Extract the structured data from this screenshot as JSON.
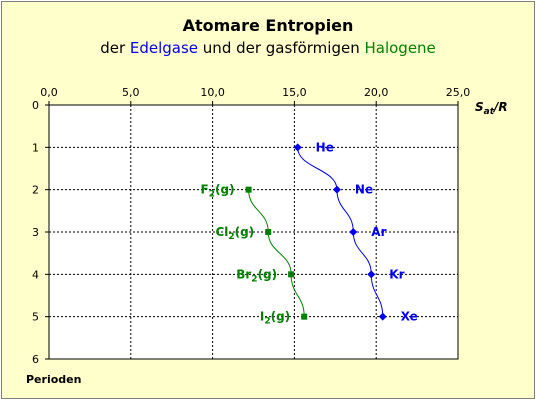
{
  "header": {
    "title": "Atomare Entropien",
    "subtitle_parts": [
      "der ",
      "Edelgase",
      " und der gasförmigen ",
      "Halogene"
    ]
  },
  "chart_data": {
    "type": "line",
    "title": "Atomare Entropien",
    "subtitle": "der Edelgase und der gasförmigen Halogene",
    "xlabel_main": "S",
    "xlabel_sub": "at",
    "xlabel_tail": "/R",
    "ylabel": "Perioden",
    "xlim": [
      0,
      25
    ],
    "ylim": [
      0,
      6
    ],
    "x_ticks": [
      "0,0",
      "5,0",
      "10,0",
      "15,0",
      "20,0",
      "25,0"
    ],
    "x_tick_values": [
      0,
      5,
      10,
      15,
      20,
      25
    ],
    "y_ticks": [
      "0",
      "1",
      "2",
      "3",
      "4",
      "5",
      "6"
    ],
    "y_tick_values": [
      0,
      1,
      2,
      3,
      4,
      5,
      6
    ],
    "x_axis_position": "top",
    "y_inverted": true,
    "grid": true,
    "series": [
      {
        "color": "#0000ee",
        "marker": "diamond",
        "points": [
          {
            "x": 15.2,
            "y": 1,
            "label_main": "He",
            "label_sub": "",
            "label_tail": ""
          },
          {
            "x": 17.6,
            "y": 2,
            "label_main": "Ne",
            "label_sub": "",
            "label_tail": ""
          },
          {
            "x": 18.6,
            "y": 3,
            "label_main": "Ar",
            "label_sub": "",
            "label_tail": ""
          },
          {
            "x": 19.7,
            "y": 4,
            "label_main": "Kr",
            "label_sub": "",
            "label_tail": ""
          },
          {
            "x": 20.4,
            "y": 5,
            "label_main": "Xe",
            "label_sub": "",
            "label_tail": ""
          }
        ]
      },
      {
        "color": "#008000",
        "marker": "square",
        "points": [
          {
            "x": 12.2,
            "y": 2,
            "label_main": "F",
            "label_sub": "2",
            "label_tail": "(g)"
          },
          {
            "x": 13.4,
            "y": 3,
            "label_main": "Cl",
            "label_sub": "2",
            "label_tail": "(g)"
          },
          {
            "x": 14.8,
            "y": 4,
            "label_main": "Br",
            "label_sub": "2",
            "label_tail": "(g)"
          },
          {
            "x": 15.6,
            "y": 5,
            "label_main": "I",
            "label_sub": "2",
            "label_tail": "(g)"
          }
        ]
      }
    ]
  }
}
